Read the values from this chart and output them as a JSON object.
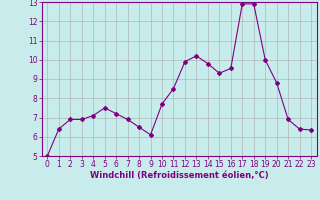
{
  "x": [
    0,
    1,
    2,
    3,
    4,
    5,
    6,
    7,
    8,
    9,
    10,
    11,
    12,
    13,
    14,
    15,
    16,
    17,
    18,
    19,
    20,
    21,
    22,
    23
  ],
  "y": [
    5.0,
    6.4,
    6.9,
    6.9,
    7.1,
    7.5,
    7.2,
    6.9,
    6.5,
    6.1,
    7.7,
    8.5,
    9.9,
    10.2,
    9.8,
    9.3,
    9.55,
    12.9,
    12.9,
    10.0,
    8.8,
    6.9,
    6.4,
    6.35
  ],
  "line_color": "#800080",
  "marker": "D",
  "marker_size": 2.0,
  "bg_color": "#c8ecec",
  "grid_color": "#aaaaaa",
  "xlabel": "Windchill (Refroidissement éolien,°C)",
  "ylabel": "",
  "xlim": [
    -0.5,
    23.5
  ],
  "ylim": [
    5,
    13
  ],
  "xticks": [
    0,
    1,
    2,
    3,
    4,
    5,
    6,
    7,
    8,
    9,
    10,
    11,
    12,
    13,
    14,
    15,
    16,
    17,
    18,
    19,
    20,
    21,
    22,
    23
  ],
  "yticks": [
    5,
    6,
    7,
    8,
    9,
    10,
    11,
    12,
    13
  ],
  "tick_color": "#800080",
  "tick_label_color": "#800080",
  "axis_color": "#800080",
  "xlabel_color": "#800080",
  "xlabel_fontsize": 6.0,
  "tick_fontsize": 5.5,
  "linewidth": 0.8
}
